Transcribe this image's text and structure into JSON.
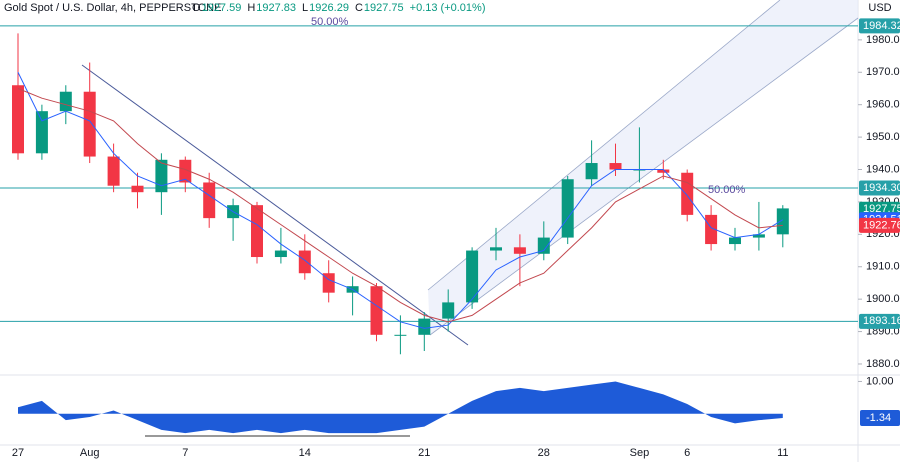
{
  "header": {
    "symbol": "Gold Spot / U.S. Dollar, 4h, PEPPERSTONE",
    "ohlc": [
      {
        "label": "O",
        "value": 1927.59
      },
      {
        "label": "H",
        "value": 1927.83
      },
      {
        "label": "L",
        "value": 1926.29
      },
      {
        "label": "C",
        "value": 1927.75
      }
    ],
    "change": "+0.13 (+0.01%)",
    "currency": "USD"
  },
  "chart_data": {
    "type": "candlestick",
    "categories": [
      "27",
      null,
      null,
      "Aug",
      null,
      null,
      null,
      "7",
      null,
      null,
      null,
      null,
      "14",
      null,
      null,
      null,
      null,
      "21",
      null,
      null,
      null,
      null,
      "28",
      null,
      null,
      null,
      "Sep",
      null,
      "6",
      null,
      null,
      null,
      "11"
    ],
    "open": [
      1966,
      1945,
      1958,
      1964,
      1944,
      1935,
      1933,
      1943,
      1936,
      1925,
      1929,
      1913,
      1915,
      1908,
      1902,
      1904,
      1889,
      1889,
      1894,
      1899,
      1915,
      1916,
      1914,
      1919,
      1937,
      1942,
      1940,
      1940,
      1939,
      1926,
      1917,
      1919,
      1920
    ],
    "high": [
      1982,
      1960,
      1966,
      1973,
      1948,
      1939,
      1945,
      1944,
      1939,
      1931,
      1930,
      1922,
      1920,
      1912,
      1907,
      1905,
      1895,
      1896,
      1903,
      1916,
      1922,
      1920,
      1924,
      1938,
      1949,
      1948,
      1953,
      1943,
      1940,
      1929,
      1922,
      1930,
      1929
    ],
    "low": [
      1943,
      1943,
      1954,
      1942,
      1933,
      1928,
      1926,
      1933,
      1922,
      1918,
      1911,
      1911,
      1906,
      1899,
      1895,
      1887,
      1883,
      1884,
      1890,
      1897,
      1912,
      1904,
      1912,
      1917,
      1935,
      1938,
      1936,
      1937,
      1924,
      1915,
      1915,
      1915,
      1916
    ],
    "close": [
      1945,
      1958,
      1964,
      1944,
      1935,
      1933,
      1943,
      1936,
      1925,
      1929,
      1913,
      1915,
      1908,
      1902,
      1904,
      1889,
      1889,
      1894,
      1899,
      1915,
      1916,
      1914,
      1919,
      1937,
      1942,
      1940,
      1940,
      1939,
      1926,
      1917,
      1919,
      1920,
      1928
    ],
    "up_color": "#089981",
    "down_color": "#f23645",
    "ma_series": [
      {
        "color": "#2962ff",
        "values": [
          1970,
          1955,
          1958,
          1955,
          1945,
          1938,
          1935,
          1937,
          1932,
          1927,
          1923,
          1917,
          1912,
          1906,
          1903,
          1898,
          1893,
          1891,
          1892,
          1900,
          1909,
          1913,
          1915,
          1925,
          1935,
          1940,
          1940,
          1940,
          1932,
          1922,
          1919,
          1920,
          1924.51
        ]
      },
      {
        "color": "#c2484f",
        "values": [
          1965,
          1962,
          1960,
          1958,
          1955,
          1948,
          1942,
          1940,
          1937,
          1933,
          1928,
          1923,
          1918,
          1913,
          1908,
          1904,
          1899,
          1895,
          1893,
          1895,
          1900,
          1905,
          1908,
          1915,
          1922,
          1930,
          1934,
          1938,
          1936,
          1931,
          1926,
          1922,
          1922.76
        ]
      }
    ],
    "ylim": [
      1876.6,
      1992.3
    ],
    "yticks": [
      {
        "value": 1880,
        "label": "1880.00"
      },
      {
        "value": 1890,
        "label": "1890.00"
      },
      {
        "value": 1900,
        "label": "1900.00"
      },
      {
        "value": 1910,
        "label": "1910.00"
      },
      {
        "value": 1920,
        "label": "1920.00"
      },
      {
        "value": 1930,
        "label": "1930.00"
      },
      {
        "value": 1940,
        "label": "1940.00"
      },
      {
        "value": 1950,
        "label": "1950.00"
      },
      {
        "value": 1960,
        "label": "1960.00"
      },
      {
        "value": 1970,
        "label": "1970.00"
      },
      {
        "value": 1980,
        "label": "1980.00"
      }
    ],
    "price_markers": [
      {
        "value": 1984.32,
        "label": "1984.32",
        "color": "#26a0a8",
        "line": true
      },
      {
        "value": 1934.3,
        "label": "1934.30",
        "color": "#26a0a8",
        "line": true
      },
      {
        "value": 1893.16,
        "label": "1893.16",
        "color": "#26a0a8",
        "line": true
      },
      {
        "value": 1927.75,
        "label": "1927.75",
        "color": "#089981",
        "line": false
      },
      {
        "value": 1924.51,
        "label": "1924.51",
        "color": "#2962ff",
        "line": false
      },
      {
        "value": 1922.76,
        "label": "1922.76",
        "color": "#f23645",
        "line": false
      }
    ],
    "fib_labels": [
      "50.00%",
      "50.00%"
    ],
    "oscillator": {
      "color": "#1e5bd8",
      "values": [
        2,
        4,
        -2,
        -1,
        1,
        -2,
        -5,
        -6,
        -5,
        -6,
        -5,
        -6,
        -5,
        -6,
        -6,
        -6,
        -5,
        -4,
        0,
        4,
        7,
        8,
        7,
        8,
        9,
        10,
        8,
        6,
        3,
        -1,
        -3,
        -2,
        -1.34
      ],
      "ylim": [
        -10,
        12
      ],
      "yticks": [
        {
          "value": 10,
          "label": "10.00"
        }
      ],
      "last_label": {
        "value": -1.34,
        "label": "-1.34"
      }
    }
  }
}
